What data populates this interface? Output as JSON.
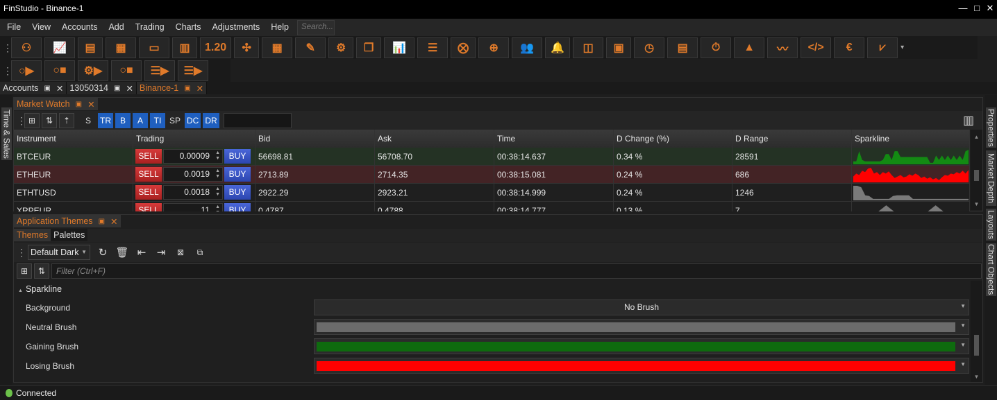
{
  "window": {
    "title": "FinStudio - Binance-1",
    "minimize": "—",
    "maximize": "□",
    "close": "✕"
  },
  "menu": {
    "items": [
      "File",
      "View",
      "Accounts",
      "Add",
      "Trading",
      "Charts",
      "Adjustments",
      "Help"
    ],
    "search_placeholder": "Search..."
  },
  "toolbar1": [
    "user-edit",
    "chart-add",
    "columns",
    "layout-add",
    "window-add",
    "bars-add",
    "quote-digits",
    "puzzle",
    "monitor-grid",
    "note-edit",
    "gear",
    "windows",
    "chart-candles",
    "order-list",
    "strategy",
    "order-add",
    "users-plug",
    "alert",
    "split-view",
    "chip",
    "clock-gear",
    "documents-money",
    "timer-info",
    "chart-shapes",
    "chart-line",
    "code-window",
    "euro-binary",
    "depth-chart"
  ],
  "toolbar2": [
    "strategy-start",
    "strategy-stop",
    "strategy-gear-start",
    "strategy-stop-2",
    "list-start",
    "list-start-2"
  ],
  "doc_tabs": [
    {
      "label": "Accounts",
      "active": false
    },
    {
      "label": "13050314",
      "active": false
    },
    {
      "label": "Binance-1",
      "active": true
    }
  ],
  "left_tabs": [
    "Time & Sales"
  ],
  "right_tabs": [
    "Properties",
    "Market Depth",
    "Layouts",
    "Chart Objects"
  ],
  "market_watch": {
    "title": "Market Watch",
    "filters": [
      {
        "label": "S",
        "on": false
      },
      {
        "label": "TR",
        "on": true
      },
      {
        "label": "B",
        "on": true
      },
      {
        "label": "A",
        "on": true
      },
      {
        "label": "TI",
        "on": true
      },
      {
        "label": "SP",
        "on": false
      },
      {
        "label": "DC",
        "on": true
      },
      {
        "label": "DR",
        "on": true
      }
    ],
    "columns": [
      "Instrument",
      "Trading",
      "Bid",
      "Ask",
      "Time",
      "D Change (%)",
      "D Range",
      "Sparkline"
    ],
    "sell_label": "SELL",
    "buy_label": "BUY",
    "rows": [
      {
        "instrument": "BTCEUR",
        "qty": "0.00009",
        "bid": "56698.81",
        "ask": "56708.70",
        "time": "00:38:14.637",
        "change": "0.34 %",
        "range": "28591",
        "state": "gain",
        "spark": [
          0.2,
          0.2,
          0.9,
          0.3,
          0.2,
          0.2,
          0.2,
          0.2,
          0.2,
          0.2,
          0.3,
          0.7,
          0.7,
          0.3,
          0.9,
          0.9,
          0.5,
          0.5,
          0.5,
          0.5,
          0.5,
          0.5,
          0.5,
          0.5,
          0.5,
          0.5,
          0.1,
          0.1,
          0.6,
          0.3,
          0.6,
          0.3,
          0.6,
          0.3,
          0.6,
          0.3,
          0.6,
          0.3,
          0.9,
          1.0
        ]
      },
      {
        "instrument": "ETHEUR",
        "qty": "0.0019",
        "bid": "2713.89",
        "ask": "2714.35",
        "time": "00:38:15.081",
        "change": "0.24 %",
        "range": "686",
        "state": "loss",
        "spark": [
          0.4,
          0.6,
          0.5,
          0.8,
          0.7,
          0.95,
          1.0,
          0.6,
          0.7,
          0.5,
          0.7,
          0.6,
          0.75,
          0.5,
          0.3,
          0.4,
          0.5,
          0.35,
          0.4,
          0.55,
          0.45,
          0.6,
          0.5,
          0.3,
          0.4,
          0.25,
          0.35,
          0.2,
          0.3,
          0.15,
          0.35,
          0.5,
          0.45,
          0.6,
          0.55,
          0.7,
          0.6,
          0.8,
          0.6,
          0.85
        ]
      },
      {
        "instrument": "ETHTUSD",
        "qty": "0.0018",
        "bid": "2922.29",
        "ask": "2923.21",
        "time": "00:38:14.999",
        "change": "0.24 %",
        "range": "1246",
        "state": "neutral",
        "spark": [
          1.0,
          1.0,
          0.9,
          0.35,
          0.3,
          0.1,
          0.1,
          0.1,
          0.1,
          0.1,
          0.3,
          0.35,
          0.35,
          0.35,
          0.35,
          0.1,
          0.1,
          0.1,
          0.1,
          0.1,
          0.1,
          0.1,
          0.1,
          0.1,
          0.1,
          0.1,
          0.1,
          0.1,
          0.1,
          0.1
        ]
      },
      {
        "instrument": "XRPEUR",
        "qty": "11",
        "bid": "0.4787",
        "ask": "0.4788",
        "time": "00:38:14.777",
        "change": "0.13 %",
        "range": "7",
        "state": "neutral",
        "spark": [
          0,
          0,
          0.9,
          0,
          0,
          0.9,
          0,
          0
        ]
      }
    ]
  },
  "themes": {
    "title": "Application Themes",
    "tabs": [
      {
        "label": "Themes",
        "active": true
      },
      {
        "label": "Palettes",
        "active": false
      }
    ],
    "selected_theme": "Default Dark",
    "filter_placeholder": "Filter (Ctrl+F)",
    "group": "Sparkline",
    "properties": [
      {
        "name": "Background",
        "value": "No Brush",
        "color": null
      },
      {
        "name": "Neutral Brush",
        "value": "",
        "color": "#6b6b6b"
      },
      {
        "name": "Gaining Brush",
        "value": "",
        "color": "#0e6b0e"
      },
      {
        "name": "Losing Brush",
        "value": "",
        "color": "#ff0000"
      }
    ]
  },
  "colors": {
    "accent": "#e07a2a",
    "gain_row": "#243224",
    "loss_row": "#432325",
    "neutral_row": "#1f1f1f",
    "gain": "#138a13",
    "loss": "#ff0000",
    "neutral": "#7a7a7a"
  },
  "status": {
    "text": "Connected"
  }
}
